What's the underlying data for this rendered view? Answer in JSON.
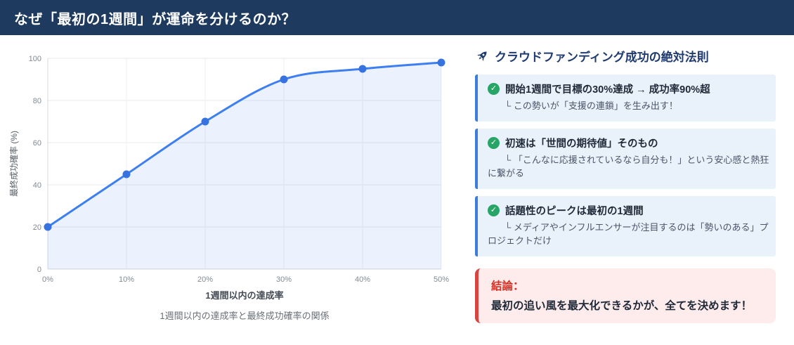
{
  "header": {
    "title": "なぜ「最初の1週間」が運命を分けるのか？"
  },
  "chart_data": {
    "type": "area",
    "x": [
      "0%",
      "10%",
      "20%",
      "30%",
      "40%",
      "50%"
    ],
    "values": [
      20,
      45,
      70,
      90,
      95,
      98
    ],
    "title": "",
    "xlabel": "1週間以内の達成率",
    "ylabel": "最終成功確率 (%)",
    "caption": "1週間以内の達成率と最終成功確率の関係",
    "ylim": [
      0,
      100
    ],
    "yticks": [
      0,
      20,
      40,
      60,
      80,
      100
    ],
    "grid": true,
    "legend": "none",
    "line_color": "#3d7ef0",
    "point_color": "#3672e0",
    "fill_color": "rgba(61,126,240,0.10)"
  },
  "panel": {
    "title": "クラウドファンディング成功の絶対法則",
    "rules": [
      {
        "title": "開始1週間で目標の30%達成 → 成功率90%超",
        "note": "└ この勢いが「支援の連鎖」を生み出す！"
      },
      {
        "title": "初速は「世間の期待値」そのもの",
        "note": "└ 「こんなに応援されているなら自分も！」という安心感と熱狂に繋がる"
      },
      {
        "title": "話題性のピークは最初の1週間",
        "note": "└ メディアやインフルエンサーが注目するのは「勢いのある」プロジェクトだけ"
      }
    ],
    "conclusion": {
      "label": "結論：",
      "text": "最初の追い風を最大化できるかが、全てを決めます！"
    }
  },
  "colors": {
    "header_bg": "#1e3a5f",
    "panel_title": "#1f3b70",
    "card_bg": "#e9f2fb",
    "card_border": "#3b7dd8",
    "check_green": "#27a567",
    "conclusion_bg": "#fdeceb",
    "conclusion_border": "#d6453f",
    "conclusion_label": "#d93025"
  }
}
